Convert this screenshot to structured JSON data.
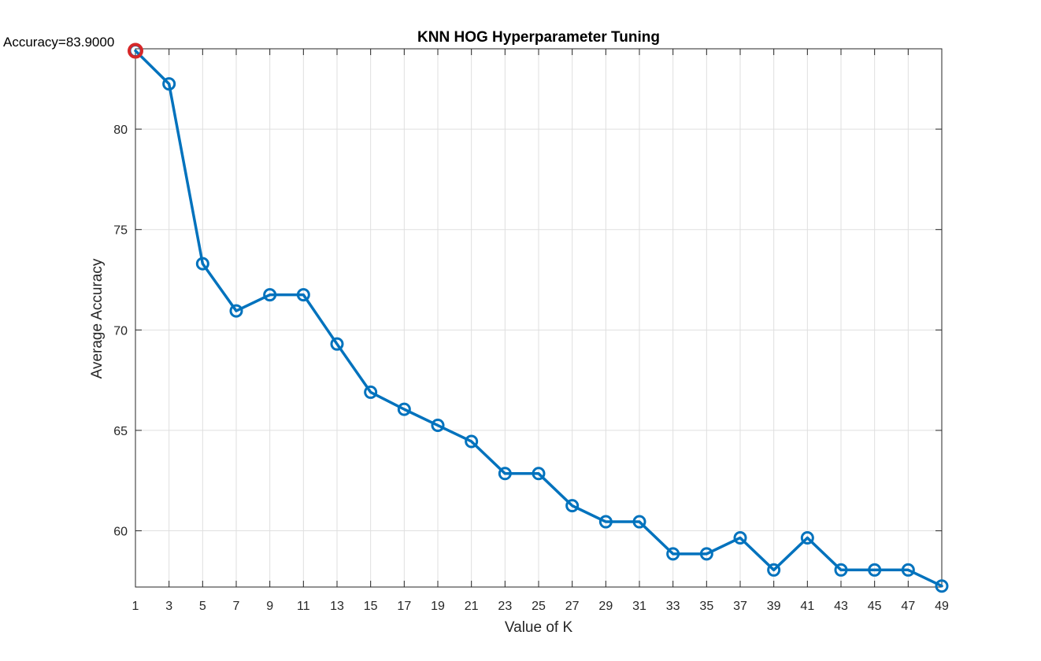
{
  "chart_data": {
    "type": "line",
    "title": "KNN HOG Hyperparameter Tuning",
    "xlabel": "Value of K",
    "ylabel": "Average Accuracy",
    "xlim": [
      1,
      49
    ],
    "ylim": [
      57.2,
      84.0
    ],
    "grid": true,
    "x": [
      1,
      3,
      5,
      7,
      9,
      11,
      13,
      15,
      17,
      19,
      21,
      23,
      25,
      27,
      29,
      31,
      33,
      35,
      37,
      39,
      41,
      43,
      45,
      47,
      49
    ],
    "series": [
      {
        "values": [
          83.9,
          82.25,
          73.3,
          70.95,
          71.75,
          71.75,
          69.3,
          66.9,
          66.05,
          65.25,
          64.45,
          62.85,
          62.85,
          61.25,
          60.45,
          60.45,
          58.85,
          58.85,
          59.65,
          58.05,
          59.65,
          58.05,
          58.05,
          58.05,
          57.25
        ],
        "color": "#0072BD",
        "marker": "circle"
      }
    ],
    "x_ticks": [
      "1",
      "3",
      "5",
      "7",
      "9",
      "11",
      "13",
      "15",
      "17",
      "19",
      "21",
      "23",
      "25",
      "27",
      "29",
      "31",
      "33",
      "35",
      "37",
      "39",
      "41",
      "43",
      "45",
      "47",
      "49"
    ],
    "y_ticks": [
      "60",
      "65",
      "70",
      "75",
      "80"
    ],
    "highlight": {
      "x": 1,
      "y": 83.9,
      "color": "#D62728",
      "label": "Accuracy=83.9000"
    }
  }
}
